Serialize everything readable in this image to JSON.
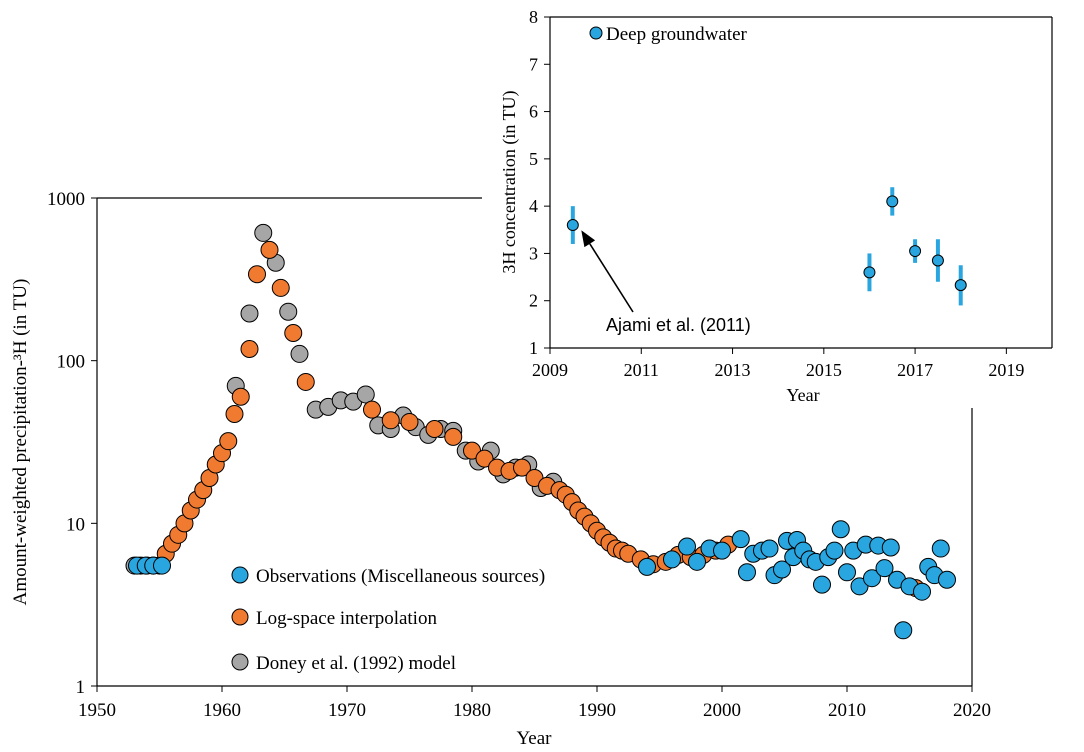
{
  "colors": {
    "observations": "#29a6df",
    "interpolation": "#ef7a30",
    "model": "#a6a6a6",
    "inset_points": "#29a6df",
    "inset_errorbars": "#29a6df",
    "axis": "#000000"
  },
  "chart_data": [
    {
      "id": "main",
      "type": "scatter",
      "title": "",
      "xlabel": "Year",
      "ylabel": "Amount-weighted precipitation-³H (in TU)",
      "xlim": [
        1950,
        2020
      ],
      "ylim": [
        1,
        1000
      ],
      "yscale": "log",
      "xticks": [
        1950,
        1960,
        1970,
        1980,
        1990,
        2000,
        2010,
        2020
      ],
      "xtick_labels": [
        "1950",
        "1960",
        "1970",
        "1980",
        "1990",
        "2000",
        "2010",
        "2020"
      ],
      "yticks": [
        1,
        10,
        100,
        1000
      ],
      "ytick_labels": [
        "1",
        "10",
        "100",
        "1000"
      ],
      "legend_position": "bottom-left",
      "series": [
        {
          "name": "Doney et al. (1992) model",
          "key": "model",
          "x": [
            1953,
            1954,
            1955,
            1961.1,
            1962.2,
            1963.3,
            1964.3,
            1965.3,
            1966.2,
            1967.5,
            1968.5,
            1969.5,
            1970.5,
            1971.5,
            1972.5,
            1973.5,
            1974.5,
            1975.5,
            1976.5,
            1977.5,
            1978.5,
            1979.5,
            1980.5,
            1981.5,
            1982.5,
            1983.5,
            1984.5,
            1985.5,
            1986.5
          ],
          "y": [
            5.5,
            5.5,
            5.5,
            70,
            195,
            610,
            400,
            200,
            110,
            50,
            52,
            57,
            56,
            62,
            40,
            38,
            46,
            39,
            35,
            38,
            37,
            28,
            24,
            28,
            20,
            22,
            23,
            16.5,
            18
          ]
        },
        {
          "name": "Log-space interpolation",
          "key": "interpolation",
          "x": [
            1953.5,
            1954.5,
            1955.5,
            1956,
            1956.5,
            1957,
            1957.5,
            1958,
            1958.5,
            1959,
            1959.5,
            1960,
            1960.5,
            1961,
            1961.5,
            1962.2,
            1962.8,
            1963.8,
            1964.7,
            1965.7,
            1966.7,
            1972,
            1973.5,
            1975,
            1977,
            1978.5,
            1980,
            1981,
            1982,
            1983,
            1984,
            1985,
            1986,
            1987,
            1987.5,
            1988,
            1988.5,
            1989,
            1989.5,
            1990,
            1990.5,
            1991,
            1991.5,
            1992,
            1992.5,
            1993.5,
            1994.5,
            1995.5,
            1996.5,
            1997.5,
            1998.5,
            1999.5,
            2000.5,
            2015.5
          ],
          "y": [
            5.5,
            5.5,
            6.5,
            7.5,
            8.5,
            10,
            12,
            14,
            16,
            19,
            23,
            27,
            32,
            47,
            60,
            118,
            340,
            480,
            280,
            148,
            74,
            50,
            43,
            42,
            38,
            34,
            28,
            25,
            22,
            21,
            22,
            19,
            17,
            16,
            15,
            13.5,
            12,
            11,
            10,
            9,
            8.2,
            7.6,
            7,
            6.8,
            6.5,
            6,
            5.6,
            5.8,
            6.4,
            6.2,
            6.4,
            6.8,
            7.4,
            4
          ]
        },
        {
          "name": "Observations (Miscellaneous sources)",
          "key": "observations",
          "x": [
            1953.2,
            1953.9,
            1954.5,
            1955.2,
            1994,
            1996,
            1997.2,
            1998,
            1999,
            2000,
            2001.5,
            2002,
            2002.5,
            2003.2,
            2003.8,
            2004.2,
            2004.8,
            2005.2,
            2005.7,
            2006,
            2006.5,
            2007,
            2007.5,
            2008,
            2008.5,
            2009,
            2009.5,
            2010,
            2010.5,
            2011,
            2011.5,
            2012,
            2012.5,
            2013,
            2013.5,
            2014,
            2014.5,
            2015,
            2016,
            2016.5,
            2017,
            2017.5,
            2018
          ],
          "y": [
            5.5,
            5.5,
            5.5,
            5.5,
            5.4,
            6,
            7.2,
            5.8,
            7,
            6.8,
            8,
            5,
            6.5,
            6.8,
            7,
            4.8,
            5.2,
            7.8,
            6.2,
            7.9,
            6.8,
            6,
            5.8,
            4.2,
            6.2,
            6.8,
            9.2,
            5,
            6.8,
            4.1,
            7.4,
            4.6,
            7.3,
            5.3,
            7.1,
            4.5,
            2.2,
            4.1,
            3.8,
            5.4,
            4.8,
            7,
            4.5
          ]
        }
      ]
    },
    {
      "id": "inset",
      "type": "scatter",
      "title": "",
      "xlabel": "Year",
      "ylabel": "3H concentration (in TU)",
      "xlim": [
        2009,
        2020
      ],
      "ylim": [
        1,
        8
      ],
      "xticks": [
        2009,
        2011,
        2013,
        2015,
        2017,
        2019
      ],
      "xtick_labels": [
        "2009",
        "2011",
        "2013",
        "2015",
        "2017",
        "2019"
      ],
      "yticks": [
        1,
        2,
        3,
        4,
        5,
        6,
        7,
        8
      ],
      "ytick_labels": [
        "1",
        "2",
        "3",
        "4",
        "5",
        "6",
        "7",
        "8"
      ],
      "legend_position": "top-left",
      "series": [
        {
          "name": "Deep groundwater",
          "key": "inset_points",
          "x": [
            2009.5,
            2016,
            2016.5,
            2017,
            2017.5,
            2018
          ],
          "y": [
            3.6,
            2.6,
            4.1,
            3.05,
            2.85,
            2.33
          ],
          "yerr_low": [
            3.2,
            2.2,
            3.8,
            2.8,
            2.4,
            1.9
          ],
          "yerr_high": [
            4.0,
            3.0,
            4.4,
            3.3,
            3.3,
            2.75
          ]
        }
      ],
      "annotation": {
        "text": "Ajami et al. (2011)",
        "points_to_x": 2009.5,
        "points_to_y": 3.6
      }
    }
  ]
}
